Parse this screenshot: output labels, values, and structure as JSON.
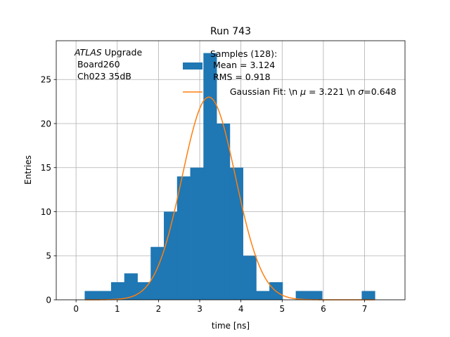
{
  "chart_data": {
    "type": "bar",
    "title": "Run 743",
    "xlabel": "time [ns]",
    "ylabel": "Entries",
    "xlim": [
      -0.48,
      7.98
    ],
    "ylim": [
      0,
      29.4
    ],
    "x_ticks": [
      0,
      1,
      2,
      3,
      4,
      5,
      6,
      7
    ],
    "y_ticks": [
      0,
      5,
      10,
      15,
      20,
      25
    ],
    "grid": true,
    "legend_position": "upper right",
    "annotation": {
      "italic": "ATLAS",
      "rest": " Upgrade",
      "line2": " Board260",
      "line3": " Ch023 35dB"
    },
    "histogram": {
      "name_lines": [
        "Samples (128):",
        " Mean = 3.124",
        " RMS = 0.918"
      ],
      "color": "#1f77b4",
      "bin_edges": [
        0.21,
        0.53,
        0.85,
        1.17,
        1.49,
        1.81,
        2.13,
        2.45,
        2.77,
        3.09,
        3.41,
        3.73,
        4.05,
        4.37,
        4.69,
        5.01,
        5.33,
        5.65,
        5.97,
        6.29,
        6.61,
        6.93,
        7.25
      ],
      "counts": [
        1,
        1,
        2,
        3,
        2,
        6,
        10,
        14,
        15,
        28,
        20,
        15,
        5,
        1,
        2,
        0,
        1,
        1,
        0,
        0,
        0,
        1
      ]
    },
    "fit": {
      "name": "Gaussian Fit: \\n $\\mu$ = 3.221 \\n $\\sigma$=0.648",
      "legend_parts": [
        "Gaussian Fit: \\n ",
        "μ",
        " = 3.221 \\n ",
        "σ",
        "=0.648"
      ],
      "color": "#ff7f0e",
      "mu": 3.221,
      "sigma": 0.648,
      "amplitude": 23.0,
      "x_range": [
        0.21,
        7.25
      ]
    }
  }
}
